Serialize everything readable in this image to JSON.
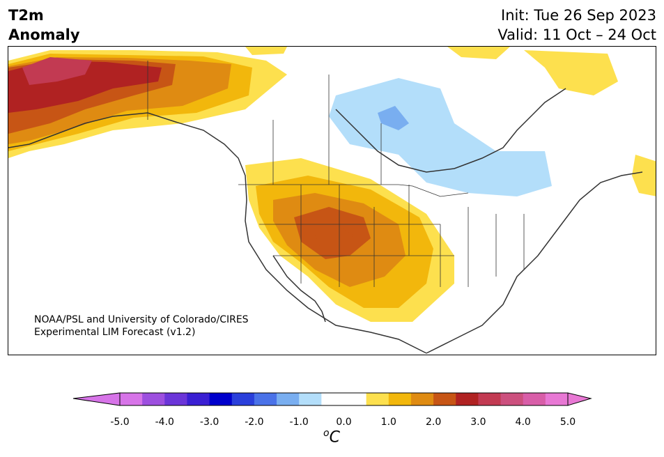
{
  "header": {
    "title_line1": "T2m",
    "title_line2": "Anomaly",
    "init": "Init: Tue 26 Sep 2023",
    "valid": "Valid: 11 Oct – 24 Oct"
  },
  "credit": {
    "line1": "NOAA/PSL and University of Colorado/CIRES",
    "line2": "Experimental LIM Forecast (v1.2)"
  },
  "colorbar": {
    "unit_super": "o",
    "unit_main": "C",
    "tick_labels": [
      "-5.0",
      "-4.0",
      "-3.0",
      "-2.0",
      "-1.0",
      "0.0",
      "1.0",
      "2.0",
      "3.0",
      "4.0",
      "5.0"
    ],
    "colors": [
      "#d774e8",
      "#9d4fdf",
      "#6b35d8",
      "#3a1fd3",
      "#0000cc",
      "#2a3fdb",
      "#4a72e8",
      "#79aef0",
      "#b3defa",
      "#ffffff",
      "#ffffff",
      "#fde04e",
      "#f2b70c",
      "#df8b12",
      "#c75515",
      "#b02222",
      "#c23a52",
      "#cc507e",
      "#d85ea8",
      "#e878d4"
    ]
  },
  "map": {
    "region": "North America",
    "anomaly_colors": {
      "warm1": "#fde04e",
      "warm2": "#f2b70c",
      "warm3": "#df8b12",
      "warm4": "#c75515",
      "warm5": "#b02222",
      "warm6": "#c23a52",
      "cool1": "#b3defa",
      "cool2": "#79aef0"
    }
  }
}
